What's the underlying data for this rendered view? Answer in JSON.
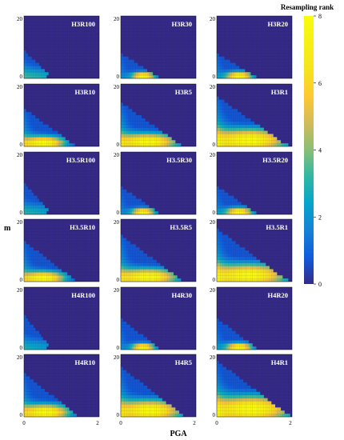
{
  "chart_data": {
    "type": "heatmap",
    "xlabel": "PGA",
    "ylabel": "m",
    "xlim": [
      0,
      2
    ],
    "ylim": [
      0,
      20
    ],
    "x_ticks": [
      "0",
      "2"
    ],
    "y_ticks": [
      "0",
      "20"
    ],
    "layout": "6 rows x 3 columns of panels",
    "colorbar": {
      "title": "Resampling rank",
      "range": [
        0,
        8
      ],
      "ticks": [
        "0",
        "2",
        "4",
        "6",
        "8"
      ],
      "colormap": "parula"
    },
    "panels": [
      {
        "title": "H3R100",
        "peak_pga": 0.4,
        "peak_m": 0.5,
        "peak_rank": 2.6,
        "spread_x": 0.55,
        "spread_y": 2.2,
        "max_pga_at_m0": 0.75,
        "max_m_at_pga0": 9,
        "tail": 1.6,
        "low_m_max_pga": 0.6
      },
      {
        "title": "H3R30",
        "peak_pga": 0.6,
        "peak_m": 0.8,
        "peak_rank": 8.0,
        "spread_x": 0.22,
        "spread_y": 0.9,
        "max_pga_at_m0": 1.05,
        "max_m_at_pga0": 8,
        "tail": 2.0,
        "low_m_max_pga": 1.0
      },
      {
        "title": "H3R20",
        "peak_pga": 0.6,
        "peak_m": 0.8,
        "peak_rank": 8.0,
        "spread_x": 0.25,
        "spread_y": 1.0,
        "max_pga_at_m0": 1.1,
        "max_m_at_pga0": 8,
        "tail": 2.2,
        "low_m_max_pga": 1.05
      },
      {
        "title": "H3R10",
        "peak_pga": 0.55,
        "peak_m": 1.2,
        "peak_rank": 8.0,
        "spread_x": 0.4,
        "spread_y": 1.5,
        "max_pga_at_m0": 1.4,
        "max_m_at_pga0": 12,
        "tail": 3.5,
        "low_m_max_pga": 1.35
      },
      {
        "title": "H3R5",
        "peak_pga": 0.75,
        "peak_m": 1.5,
        "peak_rank": 8.0,
        "spread_x": 0.55,
        "spread_y": 1.9,
        "max_pga_at_m0": 1.65,
        "max_m_at_pga0": 14,
        "tail": 4.5,
        "low_m_max_pga": 1.6
      },
      {
        "title": "H3R1",
        "peak_pga": 0.9,
        "peak_m": 2.0,
        "peak_rank": 8.0,
        "spread_x": 0.7,
        "spread_y": 2.6,
        "max_pga_at_m0": 1.9,
        "max_m_at_pga0": 16,
        "tail": 5.5,
        "low_m_max_pga": 1.9
      },
      {
        "title": "H3.5R100",
        "peak_pga": 0.4,
        "peak_m": 0.5,
        "peak_rank": 2.4,
        "spread_x": 0.55,
        "spread_y": 2.2,
        "max_pga_at_m0": 0.75,
        "max_m_at_pga0": 10,
        "tail": 1.4,
        "low_m_max_pga": 0.6
      },
      {
        "title": "H3.5R30",
        "peak_pga": 0.6,
        "peak_m": 0.8,
        "peak_rank": 8.0,
        "spread_x": 0.22,
        "spread_y": 0.9,
        "max_pga_at_m0": 1.05,
        "max_m_at_pga0": 9,
        "tail": 2.0,
        "low_m_max_pga": 1.0
      },
      {
        "title": "H3.5R20",
        "peak_pga": 0.6,
        "peak_m": 0.8,
        "peak_rank": 8.0,
        "spread_x": 0.25,
        "spread_y": 1.0,
        "max_pga_at_m0": 1.1,
        "max_m_at_pga0": 9,
        "tail": 2.2,
        "low_m_max_pga": 1.05
      },
      {
        "title": "H3.5R10",
        "peak_pga": 0.55,
        "peak_m": 1.2,
        "peak_rank": 8.0,
        "spread_x": 0.4,
        "spread_y": 1.5,
        "max_pga_at_m0": 1.4,
        "max_m_at_pga0": 13,
        "tail": 3.5,
        "low_m_max_pga": 1.35
      },
      {
        "title": "H3.5R5",
        "peak_pga": 0.75,
        "peak_m": 1.5,
        "peak_rank": 8.0,
        "spread_x": 0.55,
        "spread_y": 1.9,
        "max_pga_at_m0": 1.65,
        "max_m_at_pga0": 15,
        "tail": 4.5,
        "low_m_max_pga": 1.6
      },
      {
        "title": "H3.5R1",
        "peak_pga": 0.9,
        "peak_m": 2.0,
        "peak_rank": 8.0,
        "spread_x": 0.7,
        "spread_y": 2.6,
        "max_pga_at_m0": 1.9,
        "max_m_at_pga0": 17,
        "tail": 5.5,
        "low_m_max_pga": 1.9
      },
      {
        "title": "H4R100",
        "peak_pga": 0.4,
        "peak_m": 0.5,
        "peak_rank": 2.2,
        "spread_x": 0.55,
        "spread_y": 2.2,
        "max_pga_at_m0": 0.75,
        "max_m_at_pga0": 11,
        "tail": 1.4,
        "low_m_max_pga": 0.6
      },
      {
        "title": "H4R30",
        "peak_pga": 0.6,
        "peak_m": 0.8,
        "peak_rank": 8.0,
        "spread_x": 0.22,
        "spread_y": 0.9,
        "max_pga_at_m0": 1.05,
        "max_m_at_pga0": 10,
        "tail": 2.0,
        "low_m_max_pga": 1.0
      },
      {
        "title": "H4R20",
        "peak_pga": 0.6,
        "peak_m": 0.8,
        "peak_rank": 8.0,
        "spread_x": 0.25,
        "spread_y": 1.0,
        "max_pga_at_m0": 1.1,
        "max_m_at_pga0": 10,
        "tail": 2.2,
        "low_m_max_pga": 1.05
      },
      {
        "title": "H4R10",
        "peak_pga": 0.6,
        "peak_m": 1.5,
        "peak_rank": 8.0,
        "spread_x": 0.45,
        "spread_y": 1.8,
        "max_pga_at_m0": 1.45,
        "max_m_at_pga0": 14,
        "tail": 3.5,
        "low_m_max_pga": 1.4
      },
      {
        "title": "H4R5",
        "peak_pga": 0.8,
        "peak_m": 2.0,
        "peak_rank": 8.0,
        "spread_x": 0.6,
        "spread_y": 2.4,
        "max_pga_at_m0": 1.7,
        "max_m_at_pga0": 16,
        "tail": 4.5,
        "low_m_max_pga": 1.65
      },
      {
        "title": "H4R1",
        "peak_pga": 0.95,
        "peak_m": 2.5,
        "peak_rank": 8.0,
        "spread_x": 0.75,
        "spread_y": 3.0,
        "max_pga_at_m0": 1.95,
        "max_m_at_pga0": 18,
        "tail": 5.5,
        "low_m_max_pga": 1.95
      }
    ]
  }
}
